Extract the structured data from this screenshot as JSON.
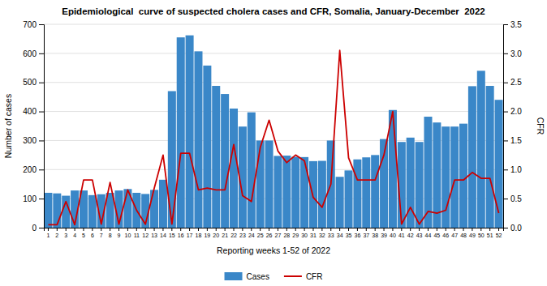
{
  "chart_data": {
    "type": "bar",
    "title": "Epidemiological  curve of suspected cholera cases and CFR, Somalia, January-December  2022",
    "x_label": "Reporting weeks 1-52 of 2022",
    "y_label": "Number of cases",
    "y2_label": "CFR",
    "categories": [
      "1",
      "2",
      "3",
      "4",
      "5",
      "6",
      "7",
      "8",
      "9",
      "10",
      "11",
      "12",
      "13",
      "14",
      "15",
      "16",
      "17",
      "18",
      "19",
      "20",
      "21",
      "22",
      "23",
      "24",
      "25",
      "26",
      "27",
      "28",
      "29",
      "30",
      "31",
      "32",
      "33",
      "34",
      "35",
      "36",
      "37",
      "38",
      "39",
      "40",
      "41",
      "42",
      "43",
      "44",
      "45",
      "46",
      "47",
      "48",
      "49",
      "50",
      "51",
      "52"
    ],
    "series": [
      {
        "name": "Cases",
        "type": "bar",
        "color": "#3a87c8",
        "values": [
          120,
          118,
          110,
          128,
          128,
          112,
          115,
          120,
          128,
          133,
          120,
          116,
          130,
          165,
          470,
          655,
          662,
          607,
          558,
          488,
          460,
          410,
          348,
          397,
          300,
          300,
          247,
          248,
          244,
          243,
          229,
          230,
          300,
          175,
          197,
          235,
          242,
          250,
          305,
          405,
          295,
          310,
          295,
          382,
          362,
          348,
          348,
          358,
          487,
          540,
          488,
          440
        ]
      },
      {
        "name": "CFR",
        "type": "line",
        "axis": "y2",
        "color": "#cc0000",
        "values": [
          0.05,
          0.05,
          0.45,
          0.05,
          0.82,
          0.82,
          0.06,
          0.78,
          0.06,
          0.65,
          0.3,
          0.06,
          0.68,
          1.25,
          0.06,
          1.28,
          1.28,
          0.65,
          0.68,
          0.65,
          0.65,
          1.43,
          0.55,
          0.45,
          1.38,
          1.85,
          1.32,
          1.12,
          1.25,
          1.15,
          0.52,
          0.35,
          0.75,
          3.05,
          1.2,
          0.82,
          0.82,
          0.82,
          1.25,
          2.0,
          0.06,
          0.35,
          0.06,
          0.28,
          0.25,
          0.3,
          0.82,
          0.82,
          0.95,
          0.85,
          0.85,
          0.25
        ]
      }
    ],
    "ylim": [
      0,
      700
    ],
    "yticks": [
      0,
      100,
      200,
      300,
      400,
      500,
      600,
      700
    ],
    "y2lim": [
      0.0,
      3.5
    ],
    "y2ticks": [
      {
        "value": 0,
        "label": "0.0"
      },
      0.5,
      {
        "value": 1,
        "label": "1.0"
      },
      1.5,
      {
        "value": 2,
        "label": "2.0"
      },
      2.5,
      {
        "value": 3,
        "label": "3.0"
      },
      3.5
    ],
    "grid": true,
    "legend": "bottom"
  }
}
